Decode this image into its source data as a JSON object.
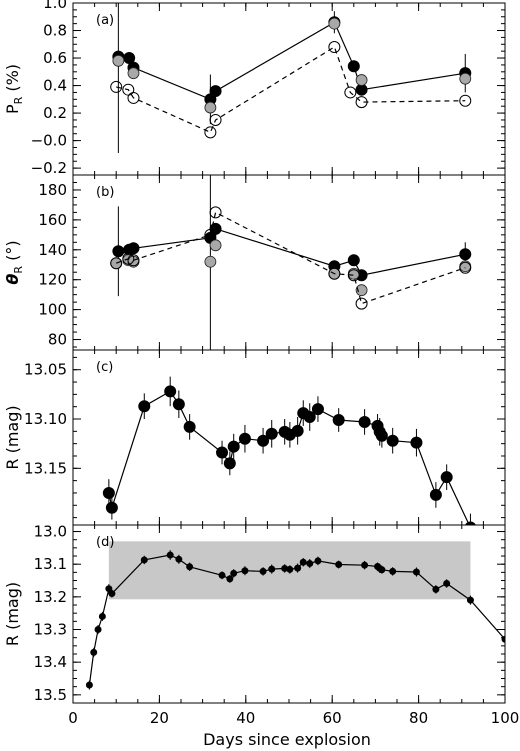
{
  "figure": {
    "xlabel": "Days since explosion",
    "x_ticks": [
      0,
      20,
      40,
      60,
      80,
      100
    ],
    "xlim": [
      0,
      100
    ]
  },
  "chart_data": [
    {
      "type": "scatter",
      "panel": "(a)",
      "ylabel": "P_R (%)",
      "ylabel_main": "P",
      "ylabel_sub": "R",
      "ylabel_tail": " (%)",
      "ylim": [
        -0.25,
        1.0
      ],
      "yticks": [
        -0.2,
        0.0,
        0.2,
        0.4,
        0.6,
        0.8,
        1.0
      ],
      "ytick_labels": [
        "−0.2",
        "−0.0",
        "0.2",
        "0.4",
        "0.6",
        "0.8",
        "1.0"
      ],
      "series": [
        {
          "style": "solid-filled",
          "x": [
            10.5,
            13.0,
            14.0,
            31.8,
            33.0,
            60.5,
            65.0,
            66.8,
            90.8
          ],
          "y": [
            0.61,
            0.6,
            0.53,
            0.3,
            0.36,
            0.86,
            0.54,
            0.37,
            0.49
          ],
          "yerr": [
            0.7,
            0,
            0,
            0.18,
            0,
            0.08,
            0,
            0,
            0.14
          ]
        },
        {
          "style": "grey",
          "x": [
            10.5,
            14.0,
            31.8,
            60.5,
            66.8,
            90.8
          ],
          "y": [
            0.58,
            0.49,
            0.24,
            0.85,
            0.44,
            0.45
          ],
          "yerr": [
            0,
            0,
            0,
            0,
            0,
            0
          ]
        },
        {
          "style": "dashed-open",
          "x": [
            10.0,
            12.8,
            14.0,
            31.8,
            33.0,
            60.5,
            64.2,
            66.8,
            90.8
          ],
          "y": [
            0.39,
            0.37,
            0.31,
            0.06,
            0.15,
            0.68,
            0.35,
            0.28,
            0.29
          ],
          "yerr": [
            0,
            0,
            0,
            0,
            0,
            0,
            0,
            0,
            0
          ]
        }
      ]
    },
    {
      "type": "scatter",
      "panel": "(b)",
      "ylabel": "θ_R (°)",
      "ylabel_main": "θ",
      "ylabel_sub": "R",
      "ylabel_tail": " (°)",
      "ylim": [
        73,
        190
      ],
      "yticks": [
        80,
        100,
        120,
        140,
        160,
        180
      ],
      "ytick_labels": [
        "80",
        "100",
        "120",
        "140",
        "160",
        "180"
      ],
      "series": [
        {
          "style": "solid-filled",
          "x": [
            10.5,
            13.0,
            14.0,
            31.8,
            33.0,
            60.5,
            65.0,
            66.8,
            90.8
          ],
          "y": [
            139,
            140,
            141,
            148,
            154,
            129,
            133,
            123,
            137
          ],
          "yerr": [
            30,
            0,
            0,
            80,
            0,
            0,
            0,
            0,
            8
          ]
        },
        {
          "style": "grey",
          "x": [
            10.0,
            12.8,
            14.0,
            31.8,
            33.0,
            60.5,
            65.0,
            66.8,
            90.8
          ],
          "y": [
            131,
            133,
            132,
            132,
            143,
            124,
            124,
            113,
            129
          ],
          "yerr": [
            0,
            0,
            0,
            0,
            0,
            0,
            0,
            0,
            0
          ]
        },
        {
          "style": "dashed-open",
          "x": [
            10.0,
            12.8,
            14.0,
            31.8,
            33.0,
            60.5,
            65.0,
            66.8,
            90.8
          ],
          "y": [
            131,
            134,
            133,
            150,
            165,
            124,
            123,
            104,
            128
          ],
          "yerr": [
            0,
            0,
            0,
            0,
            0,
            0,
            0,
            0,
            0
          ]
        }
      ]
    },
    {
      "type": "line",
      "panel": "(c)",
      "ylabel": "R (mag)",
      "ylabel_main": "R",
      "ylabel_sub": "",
      "ylabel_tail": " (mag)",
      "ylim": [
        13.2075,
        13.03
      ],
      "yticks": [
        13.05,
        13.1,
        13.15
      ],
      "ytick_labels": [
        "13.05",
        "13.10",
        "13.15"
      ],
      "series": [
        {
          "style": "solid-filled",
          "x": [
            8.3,
            9.0,
            16.5,
            22.5,
            24.5,
            27.0,
            34.5,
            36.3,
            37.2,
            39.8,
            44.0,
            46.0,
            49.0,
            50.2,
            52.0,
            53.3,
            54.8,
            56.7,
            61.5,
            67.5,
            70.5,
            71.0,
            71.5,
            74.0,
            79.5,
            84.0,
            86.5,
            92.0
          ],
          "y": [
            13.175,
            13.19,
            13.087,
            13.072,
            13.085,
            13.108,
            13.134,
            13.145,
            13.128,
            13.12,
            13.122,
            13.115,
            13.113,
            13.116,
            13.112,
            13.094,
            13.098,
            13.09,
            13.101,
            13.103,
            13.107,
            13.113,
            13.117,
            13.122,
            13.124,
            13.177,
            13.159,
            13.21
          ],
          "yerr": [
            0.014,
            0.012,
            0.013,
            0.015,
            0.014,
            0.013,
            0.012,
            0.012,
            0.013,
            0.014,
            0.013,
            0.014,
            0.013,
            0.013,
            0.014,
            0.013,
            0.014,
            0.013,
            0.012,
            0.013,
            0.012,
            0.014,
            0.012,
            0.013,
            0.014,
            0.013,
            0.013,
            0.014
          ]
        }
      ]
    },
    {
      "type": "line",
      "panel": "(d)",
      "ylabel": "R (mag)",
      "ylabel_main": "R",
      "ylabel_sub": "",
      "ylabel_tail": " (mag)",
      "ylim": [
        13.525,
        12.98
      ],
      "yticks": [
        13.0,
        13.1,
        13.2,
        13.3,
        13.4,
        13.5
      ],
      "ytick_labels": [
        "13.0",
        "13.1",
        "13.2",
        "13.3",
        "13.4",
        "13.5"
      ],
      "shaded_band": {
        "x": [
          8.3,
          92.0
        ],
        "y": [
          13.03,
          13.2075
        ]
      },
      "series": [
        {
          "style": "solid-small",
          "x": [
            3.8,
            4.8,
            5.8,
            6.8,
            8.3,
            9.0,
            16.5,
            22.5,
            24.5,
            27.0,
            34.5,
            36.3,
            37.2,
            39.8,
            44.0,
            46.0,
            49.0,
            50.2,
            52.0,
            53.3,
            54.8,
            56.7,
            61.5,
            67.5,
            70.5,
            71.0,
            71.5,
            74.0,
            79.5,
            84.0,
            86.5,
            92.0,
            100.0
          ],
          "y": [
            13.47,
            13.37,
            13.3,
            13.26,
            13.175,
            13.19,
            13.087,
            13.072,
            13.085,
            13.108,
            13.134,
            13.145,
            13.128,
            13.12,
            13.122,
            13.115,
            13.113,
            13.116,
            13.112,
            13.094,
            13.098,
            13.09,
            13.101,
            13.103,
            13.107,
            13.113,
            13.117,
            13.122,
            13.124,
            13.177,
            13.159,
            13.21,
            13.33
          ],
          "yerr": [
            0.014,
            0.014,
            0.014,
            0.014,
            0.014,
            0.012,
            0.013,
            0.015,
            0.014,
            0.013,
            0.012,
            0.012,
            0.013,
            0.014,
            0.013,
            0.014,
            0.013,
            0.013,
            0.014,
            0.013,
            0.014,
            0.013,
            0.012,
            0.013,
            0.012,
            0.014,
            0.012,
            0.013,
            0.014,
            0.013,
            0.013,
            0.014,
            0
          ]
        }
      ]
    }
  ]
}
